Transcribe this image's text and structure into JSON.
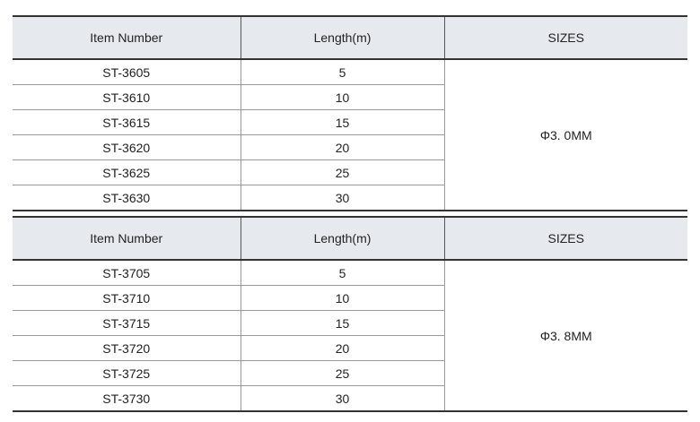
{
  "tables": [
    {
      "headers": [
        "Item Number",
        "Length(m)",
        "SIZES"
      ],
      "rows": [
        [
          "ST-3605",
          "5"
        ],
        [
          "ST-3610",
          "10"
        ],
        [
          "ST-3615",
          "15"
        ],
        [
          "ST-3620",
          "20"
        ],
        [
          "ST-3625",
          "25"
        ],
        [
          "ST-3630",
          "30"
        ]
      ],
      "size": "Φ3. 0MM"
    },
    {
      "headers": [
        "Item Number",
        "Length(m)",
        "SIZES"
      ],
      "rows": [
        [
          "ST-3705",
          "5"
        ],
        [
          "ST-3710",
          "10"
        ],
        [
          "ST-3715",
          "15"
        ],
        [
          "ST-3720",
          "20"
        ],
        [
          "ST-3725",
          "25"
        ],
        [
          "ST-3730",
          "30"
        ]
      ],
      "size": "Φ3. 8MM"
    }
  ],
  "colors": {
    "header_bg": "#e6eaef",
    "rule": "#333333"
  }
}
